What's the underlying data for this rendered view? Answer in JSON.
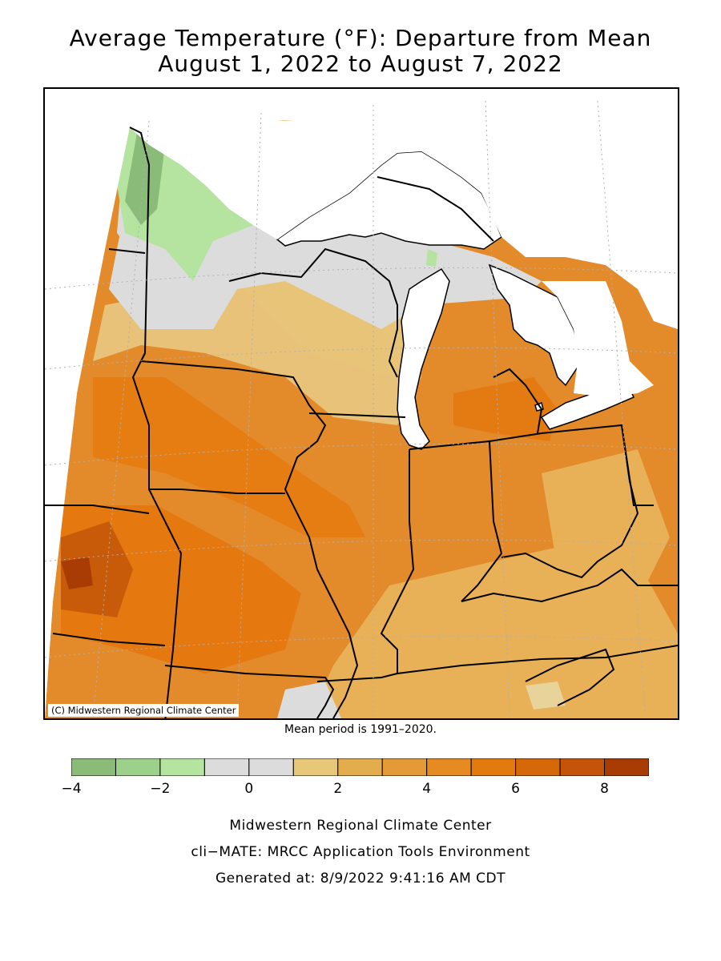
{
  "title": {
    "line1": "Average Temperature (°F): Departure from Mean",
    "line2": "August 1, 2022 to August 7, 2022"
  },
  "map": {
    "copyright": "(C) Midwestern Regional Climate Center",
    "mean_period": "Mean period is 1991–2020."
  },
  "legend": {
    "colors": [
      "#8bbb78",
      "#9dd08a",
      "#b5e3a0",
      "#dcdcdc",
      "#dcdcdc",
      "#e7c878",
      "#e3ad4e",
      "#e49a36",
      "#e68a22",
      "#e37a0e",
      "#d5690a",
      "#c5540a",
      "#a83c04"
    ],
    "tick_labels": [
      "−4",
      "−2",
      "0",
      "2",
      "4",
      "6",
      "8"
    ],
    "tick_values": [
      -4,
      -2,
      0,
      2,
      4,
      6,
      8
    ],
    "range": [
      -4,
      9
    ]
  },
  "footer": {
    "line1": "Midwestern Regional Climate Center",
    "line2": "cli−MATE: MRCC Application Tools Environment",
    "line3": "Generated at: 8/9/2022 9:41:16 AM CDT"
  }
}
